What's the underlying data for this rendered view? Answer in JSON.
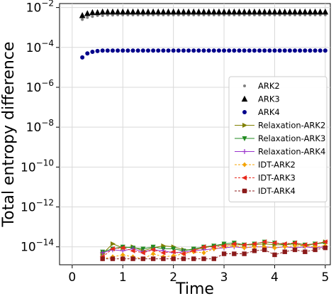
{
  "chart_data": {
    "type": "scatter",
    "xlabel": "Time",
    "ylabel": "Total entropy difference",
    "xlim": [
      -0.25,
      5.1
    ],
    "ylim_log10": [
      -14.9,
      -1.8
    ],
    "y_scale": "log",
    "grid": true,
    "legend_position": "center-right",
    "x_ticks": [
      "0",
      "1",
      "2",
      "3",
      "4",
      "5"
    ],
    "y_ticks": [
      {
        "base": "10",
        "exp": "−2"
      },
      {
        "base": "10",
        "exp": "−4"
      },
      {
        "base": "10",
        "exp": "−6"
      },
      {
        "base": "10",
        "exp": "−8"
      },
      {
        "base": "10",
        "exp": "−10"
      },
      {
        "base": "10",
        "exp": "−12"
      },
      {
        "base": "10",
        "exp": "−14"
      }
    ],
    "series": [
      {
        "name": "ARK2",
        "style": "dot",
        "color": "#808080",
        "x": [
          0.2,
          0.3,
          0.4,
          0.5,
          0.6,
          0.7,
          0.8,
          0.9,
          1.0,
          1.1,
          1.2,
          1.3,
          1.4,
          1.5,
          1.6,
          1.7,
          1.8,
          1.9,
          2.0,
          2.1,
          2.2,
          2.3,
          2.4,
          2.5,
          2.6,
          2.7,
          2.8,
          2.9,
          3.0,
          3.1,
          3.2,
          3.3,
          3.4,
          3.5,
          3.6,
          3.7,
          3.8,
          3.9,
          4.0,
          4.1,
          4.2,
          4.3,
          4.4,
          4.5,
          4.6,
          4.7,
          4.8,
          4.9,
          5.0
        ],
        "log10_y": [
          -2.6,
          -2.5,
          -2.45,
          -2.4,
          -2.4,
          -2.38,
          -2.38,
          -2.37,
          -2.37,
          -2.37,
          -2.37,
          -2.37,
          -2.37,
          -2.37,
          -2.37,
          -2.37,
          -2.37,
          -2.37,
          -2.37,
          -2.37,
          -2.37,
          -2.37,
          -2.37,
          -2.37,
          -2.37,
          -2.37,
          -2.37,
          -2.37,
          -2.37,
          -2.37,
          -2.37,
          -2.37,
          -2.37,
          -2.37,
          -2.37,
          -2.37,
          -2.37,
          -2.37,
          -2.37,
          -2.37,
          -2.37,
          -2.37,
          -2.37,
          -2.37,
          -2.37,
          -2.37,
          -2.37,
          -2.37,
          -2.37
        ]
      },
      {
        "name": "ARK3",
        "style": "triangle",
        "color": "#000000",
        "x": [
          0.2,
          0.3,
          0.4,
          0.5,
          0.6,
          0.7,
          0.8,
          0.9,
          1.0,
          1.1,
          1.2,
          1.3,
          1.4,
          1.5,
          1.6,
          1.7,
          1.8,
          1.9,
          2.0,
          2.1,
          2.2,
          2.3,
          2.4,
          2.5,
          2.6,
          2.7,
          2.8,
          2.9,
          3.0,
          3.1,
          3.2,
          3.3,
          3.4,
          3.5,
          3.6,
          3.7,
          3.8,
          3.9,
          4.0,
          4.1,
          4.2,
          4.3,
          4.4,
          4.5,
          4.6,
          4.7,
          4.8,
          4.9,
          5.0
        ],
        "log10_y": [
          -2.4,
          -2.3,
          -2.25,
          -2.25,
          -2.22,
          -2.22,
          -2.22,
          -2.22,
          -2.22,
          -2.22,
          -2.22,
          -2.22,
          -2.22,
          -2.22,
          -2.22,
          -2.22,
          -2.22,
          -2.22,
          -2.22,
          -2.22,
          -2.22,
          -2.22,
          -2.22,
          -2.22,
          -2.22,
          -2.22,
          -2.22,
          -2.22,
          -2.22,
          -2.22,
          -2.22,
          -2.22,
          -2.22,
          -2.22,
          -2.22,
          -2.22,
          -2.22,
          -2.22,
          -2.22,
          -2.22,
          -2.22,
          -2.22,
          -2.22,
          -2.22,
          -2.22,
          -2.22,
          -2.22,
          -2.22,
          -2.22
        ]
      },
      {
        "name": "ARK4",
        "style": "circle",
        "color": "#00008b",
        "x": [
          0.2,
          0.3,
          0.4,
          0.5,
          0.6,
          0.7,
          0.8,
          0.9,
          1.0,
          1.1,
          1.2,
          1.3,
          1.4,
          1.5,
          1.6,
          1.7,
          1.8,
          1.9,
          2.0,
          2.1,
          2.2,
          2.3,
          2.4,
          2.5,
          2.6,
          2.7,
          2.8,
          2.9,
          3.0,
          3.1,
          3.2,
          3.3,
          3.4,
          3.5,
          3.6,
          3.7,
          3.8,
          3.9,
          4.0,
          4.1,
          4.2,
          4.3,
          4.4,
          4.5,
          4.6,
          4.7,
          4.8,
          4.9,
          5.0
        ],
        "log10_y": [
          -4.5,
          -4.3,
          -4.22,
          -4.18,
          -4.16,
          -4.16,
          -4.16,
          -4.16,
          -4.16,
          -4.16,
          -4.16,
          -4.16,
          -4.16,
          -4.16,
          -4.16,
          -4.16,
          -4.16,
          -4.16,
          -4.16,
          -4.16,
          -4.16,
          -4.16,
          -4.16,
          -4.16,
          -4.16,
          -4.16,
          -4.16,
          -4.16,
          -4.16,
          -4.16,
          -4.16,
          -4.16,
          -4.16,
          -4.16,
          -4.16,
          -4.16,
          -4.16,
          -4.16,
          -4.16,
          -4.16,
          -4.16,
          -4.16,
          -4.16,
          -4.16,
          -4.16,
          -4.16,
          -4.16,
          -4.16,
          -4.16
        ]
      },
      {
        "name": "Relaxation-ARK2",
        "style": "line-triangle-right",
        "color": "#808000",
        "x": [
          0.6,
          0.8,
          1.0,
          1.2,
          1.4,
          1.6,
          1.8,
          2.0,
          2.2,
          2.4,
          2.6,
          2.8,
          3.0,
          3.2,
          3.4,
          3.6,
          3.8,
          4.0,
          4.2,
          4.4,
          4.6,
          4.8,
          5.0
        ],
        "log10_y": [
          -14.35,
          -13.85,
          -14.05,
          -14.0,
          -14.2,
          -14.05,
          -13.95,
          -14.0,
          -14.15,
          -14.15,
          -14.05,
          -13.95,
          -13.9,
          -13.9,
          -13.9,
          -13.9,
          -13.85,
          -13.9,
          -13.9,
          -13.85,
          -13.95,
          -13.85,
          -13.75
        ]
      },
      {
        "name": "Relaxation-ARK3",
        "style": "line-triangle-down",
        "color": "#228b22",
        "x": [
          0.6,
          0.8,
          1.0,
          1.2,
          1.4,
          1.6,
          1.8,
          2.0,
          2.2,
          2.4,
          2.6,
          2.8,
          3.0,
          3.2,
          3.4,
          3.6,
          3.8,
          4.0,
          4.2,
          4.4,
          4.6,
          4.8,
          5.0
        ],
        "log10_y": [
          -14.25,
          -14.1,
          -14.0,
          -14.05,
          -14.1,
          -14.0,
          -14.1,
          -14.1,
          -14.2,
          -14.1,
          -14.0,
          -13.95,
          -13.85,
          -13.8,
          -13.9,
          -13.85,
          -13.75,
          -13.8,
          -13.9,
          -13.8,
          -13.9,
          -13.85,
          -13.8
        ]
      },
      {
        "name": "Relaxation-ARK4",
        "style": "line-plus",
        "color": "#9932cc",
        "x": [
          0.6,
          0.8,
          1.0,
          1.2,
          1.4,
          1.6,
          1.8,
          2.0,
          2.2,
          2.4,
          2.6,
          2.8,
          3.0,
          3.2,
          3.4,
          3.6,
          3.8,
          4.0,
          4.2,
          4.4,
          4.6,
          4.8,
          5.0
        ],
        "log10_y": [
          -14.3,
          -14.15,
          -14.2,
          -14.1,
          -14.25,
          -14.15,
          -14.2,
          -14.3,
          -14.25,
          -14.2,
          -14.15,
          -14.1,
          -14.05,
          -14.0,
          -14.05,
          -14.0,
          -14.0,
          -14.05,
          -14.0,
          -14.05,
          -14.0,
          -14.05,
          -14.0
        ]
      },
      {
        "name": "IDT-ARK2",
        "style": "line-diamond",
        "color": "#f4a300",
        "x": [
          0.6,
          0.8,
          1.0,
          1.2,
          1.4,
          1.6,
          1.8,
          2.0,
          2.2,
          2.4,
          2.6,
          2.8,
          3.0,
          3.2,
          3.4,
          3.6,
          3.8,
          4.0,
          4.2,
          4.4,
          4.6,
          4.8,
          5.0
        ],
        "log10_y": [
          -14.6,
          -14.5,
          -14.4,
          -14.5,
          -14.6,
          -14.35,
          -14.5,
          -14.45,
          -14.35,
          -14.25,
          -14.3,
          -14.1,
          -14.0,
          -13.95,
          -14.05,
          -14.0,
          -14.0,
          -14.05,
          -14.0,
          -13.95,
          -13.95,
          -14.0,
          -13.95
        ]
      },
      {
        "name": "IDT-ARK3",
        "style": "line-triangle-left",
        "color": "#e8291c",
        "x": [
          0.6,
          0.8,
          1.0,
          1.2,
          1.4,
          1.6,
          1.8,
          2.0,
          2.2,
          2.4,
          2.6,
          2.8,
          3.0,
          3.2,
          3.4,
          3.6,
          3.8,
          4.0,
          4.2,
          4.4,
          4.6,
          4.8,
          5.0
        ],
        "log10_y": [
          -14.5,
          -14.1,
          -14.05,
          -14.2,
          -14.3,
          -14.15,
          -14.3,
          -14.25,
          -14.35,
          -14.2,
          -14.0,
          -14.0,
          -13.95,
          -13.85,
          -13.9,
          -13.85,
          -13.75,
          -13.8,
          -13.85,
          -13.8,
          -13.9,
          -13.85,
          -13.75
        ]
      },
      {
        "name": "IDT-ARK4",
        "style": "line-square",
        "color": "#8b1a1a",
        "x": [
          0.6,
          0.8,
          1.0,
          1.2,
          1.4,
          1.6,
          1.8,
          2.0,
          2.2,
          2.4,
          2.6,
          2.8,
          3.0,
          3.2,
          3.4,
          3.6,
          3.8,
          4.0,
          4.2,
          4.4,
          4.6,
          4.8,
          5.0
        ],
        "log10_y": [
          -14.6,
          -14.6,
          -14.6,
          -14.6,
          -14.6,
          -14.6,
          -14.6,
          -14.6,
          -14.6,
          -14.6,
          -14.6,
          -14.6,
          -14.35,
          -14.35,
          -14.35,
          -14.2,
          -14.15,
          -14.4,
          -14.25,
          -14.15,
          -14.25,
          -14.15,
          -14.05
        ]
      }
    ]
  }
}
